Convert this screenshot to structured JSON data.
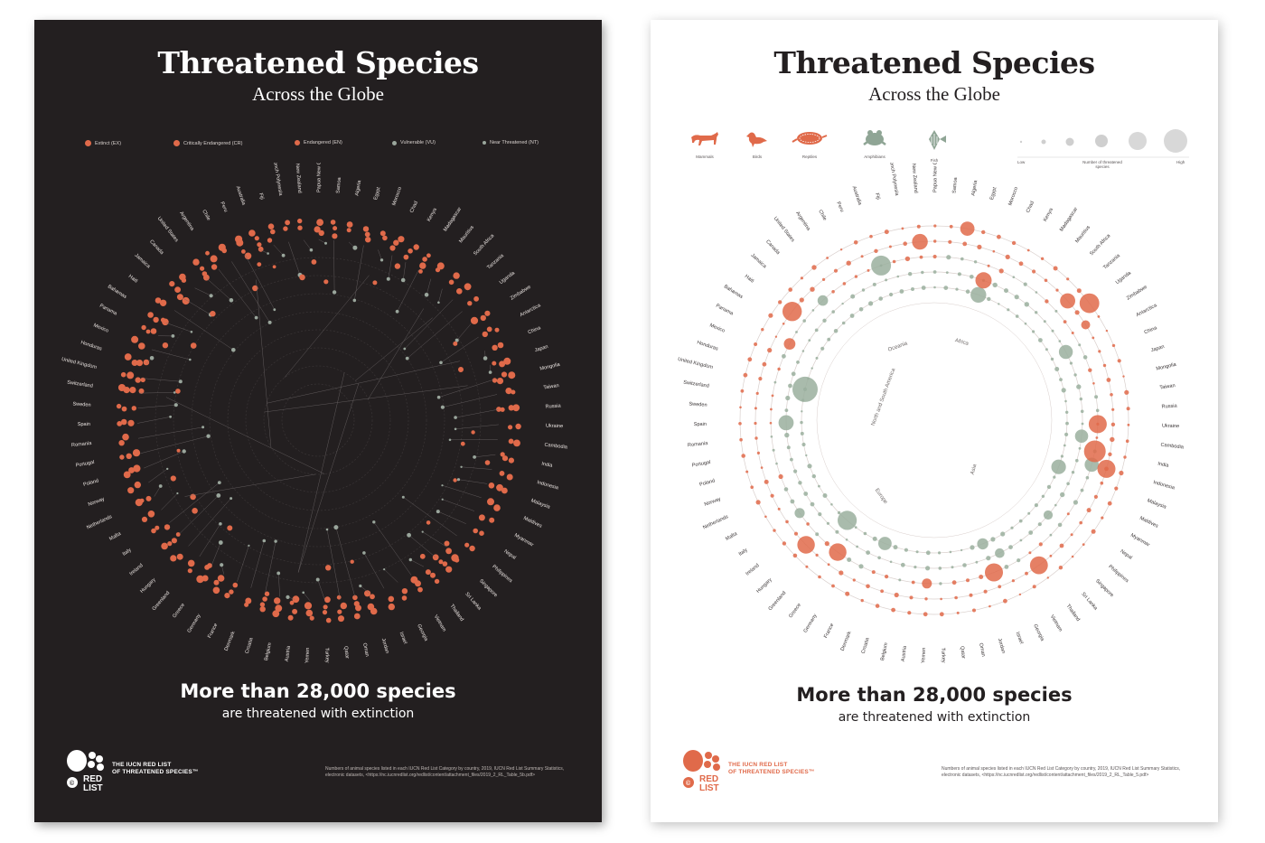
{
  "posters": {
    "dark": {
      "title": "Threatened Species",
      "subtitle": "Across the Globe",
      "legend": [
        {
          "label": "Extinct (EX)",
          "color": "#e06a4a"
        },
        {
          "label": "Critically Endangered (CR)",
          "color": "#e06a4a"
        },
        {
          "label": "Endangered (EN)",
          "color": "#e06a4a"
        },
        {
          "label": "Vulnerable (VU)",
          "color": "#9aa69c"
        },
        {
          "label": "Near Threatened (NT)",
          "color": "#9aa69c"
        }
      ],
      "headline": "More than 28,000 species",
      "subheadline": "are threatened with extinction",
      "logo_line1": "THE IUCN RED LIST",
      "logo_line2": "OF THREATENED SPECIES™",
      "logo_red": "RED",
      "logo_list": "LIST",
      "source_text": "Numbers of animal species listed in each IUCN Red List Category by country, 2019, IUCN Red List Summary Statistics, electronic datasets, <https://nc.iucnredlist.org/redlist/content/attachment_files/2019_2_RL_Table_5b.pdf>"
    },
    "light": {
      "title": "Threatened Species",
      "subtitle": "Across the Globe",
      "icons": [
        {
          "label": "Mammals",
          "icon": "big-cat-icon"
        },
        {
          "label": "Birds",
          "icon": "bird-icon"
        },
        {
          "label": "Reptiles",
          "icon": "lizard-icon"
        },
        {
          "label": "Amphibians",
          "icon": "frog-icon"
        },
        {
          "label": "Fish",
          "icon": "fish-icon"
        }
      ],
      "size_legend": {
        "low": "Low",
        "mid": "Number of threatened species",
        "high": "High"
      },
      "regions": [
        "Oceania",
        "Africa",
        "North and South America",
        "Europe",
        "Asia"
      ],
      "headline": "More than 28,000 species",
      "subheadline": "are threatened with extinction",
      "logo_line1": "THE IUCN RED LIST",
      "logo_line2": "OF THREATENED SPECIES™",
      "logo_red": "RED",
      "logo_list": "LIST",
      "source_text": "Numbers of animal species listed in each IUCN Red List Category by country, 2019, IUCN Red List Summary Statistics, electronic datasets, <https://nc.iucnredlist.org/redlist/content/attachment_files/2019_2_RL_Table_5.pdf>"
    }
  },
  "countries": [
    "Samoa",
    "Algeria",
    "Egypt",
    "Morocco",
    "Chad",
    "Kenya",
    "Madagascar",
    "Mauritius",
    "South Africa",
    "Tanzania",
    "Uganda",
    "Zimbabwe",
    "Antarctica",
    "China",
    "Japan",
    "Mongolia",
    "Taiwan",
    "Russia",
    "Ukraine",
    "Cambodia",
    "India",
    "Indonesia",
    "Malaysia",
    "Maldives",
    "Myanmar",
    "Nepal",
    "Philippines",
    "Singapore",
    "Sri Lanka",
    "Thailand",
    "Vietnam",
    "Georgia",
    "Israel",
    "Jordan",
    "Oman",
    "Qatar",
    "Turkey",
    "Yemen",
    "Austria",
    "Belgium",
    "Croatia",
    "Denmark",
    "France",
    "Germany",
    "Greece",
    "Greenland",
    "Hungary",
    "Ireland",
    "Italy",
    "Malta",
    "Netherlands",
    "Norway",
    "Poland",
    "Portugal",
    "Romania",
    "Spain",
    "Sweden",
    "Switzerland",
    "United Kingdom",
    "Honduras",
    "Mexico",
    "Panama",
    "Bahamas",
    "Haiti",
    "Jamaica",
    "Canada",
    "United States",
    "Argentina",
    "Chile",
    "Peru",
    "Australia",
    "Fiji",
    "French Polynesia",
    "New Zealand",
    "Papua New Guinea"
  ],
  "colors": {
    "accent": "#e06a4a",
    "green": "#9aaf9e",
    "dark_bg": "#231f20"
  }
}
